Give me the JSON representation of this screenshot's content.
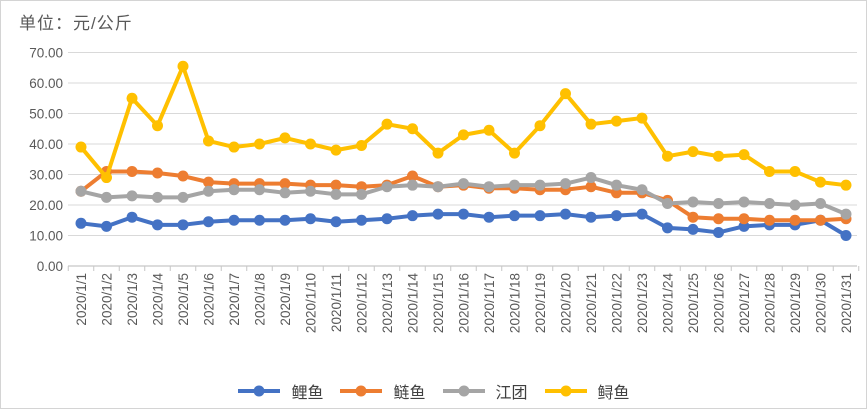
{
  "title": "单位：元/公斤",
  "chart_data": {
    "type": "line",
    "title": "单位：元/公斤",
    "x": [
      "2020/1/1",
      "2020/1/2",
      "2020/1/3",
      "2020/1/4",
      "2020/1/5",
      "2020/1/6",
      "2020/1/7",
      "2020/1/8",
      "2020/1/9",
      "2020/1/10",
      "2020/1/11",
      "2020/1/12",
      "2020/1/13",
      "2020/1/14",
      "2020/1/15",
      "2020/1/16",
      "2020/1/17",
      "2020/1/18",
      "2020/1/19",
      "2020/1/20",
      "2020/1/21",
      "2020/1/22",
      "2020/1/23",
      "2020/1/24",
      "2020/1/25",
      "2020/1/26",
      "2020/1/27",
      "2020/1/28",
      "2020/1/29",
      "2020/1/30",
      "2020/1/31"
    ],
    "series": [
      {
        "name": "鲤鱼",
        "id": "carp",
        "color": "#4472C4",
        "values": [
          14,
          13,
          16,
          13.5,
          13.5,
          14.5,
          15,
          15,
          15,
          15.5,
          14.5,
          15,
          15.5,
          16.5,
          17,
          17,
          16,
          16.5,
          16.5,
          17,
          16,
          16.5,
          17,
          12.5,
          12,
          11,
          13,
          13.5,
          13.5,
          15,
          10
        ]
      },
      {
        "name": "鲢鱼",
        "id": "silver-carp",
        "color": "#ED7D31",
        "values": [
          24.5,
          31,
          31,
          30.5,
          29.5,
          27.5,
          27,
          27,
          27,
          26.5,
          26.5,
          26,
          26.5,
          29.5,
          26,
          26.5,
          25.5,
          25.5,
          25,
          25,
          26,
          24,
          24,
          21.5,
          16,
          15.5,
          15.5,
          15,
          15,
          15,
          15.5
        ]
      },
      {
        "name": "江团",
        "id": "longsnout-catfish",
        "color": "#A5A5A5",
        "values": [
          24.5,
          22.5,
          23,
          22.5,
          22.5,
          24.5,
          25,
          25,
          24,
          24.5,
          23.5,
          23.5,
          26,
          26.5,
          26,
          27,
          26,
          26.5,
          26.5,
          27,
          29,
          26.5,
          25,
          20.5,
          21,
          20.5,
          21,
          20.5,
          20,
          20.5,
          17
        ]
      },
      {
        "name": "鲟鱼",
        "id": "sturgeon",
        "color": "#FFC000",
        "values": [
          39,
          29,
          55,
          46,
          65.5,
          41,
          39,
          40,
          42,
          40,
          38,
          39.5,
          46.5,
          45,
          37,
          43,
          44.5,
          37,
          46,
          56.5,
          46.5,
          47.5,
          48.5,
          36,
          37.5,
          36,
          36.5,
          31,
          31,
          27.5,
          26.5
        ]
      }
    ],
    "y_ticks": [
      "70.00",
      "60.00",
      "50.00",
      "40.00",
      "30.00",
      "20.00",
      "10.00",
      "0.00"
    ],
    "ylim": [
      0,
      70
    ],
    "grid": true,
    "legend_position": "bottom"
  },
  "colors": {
    "background": "#FFFFFF",
    "border": "#D4D4D4",
    "gridline": "#D9D9D9",
    "axis_line": "#C6C6C6",
    "tick_label": "#595959",
    "title_text": "#595959",
    "legend_text": "#404040"
  }
}
